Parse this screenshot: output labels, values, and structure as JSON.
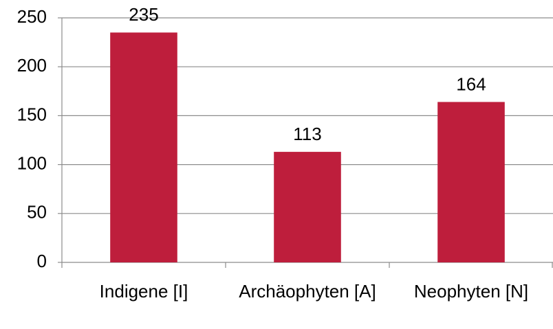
{
  "chart_data": {
    "type": "bar",
    "categories": [
      "Indigene [I]",
      "Archäophyten [A]",
      "Neophyten [N]"
    ],
    "values": [
      235,
      113,
      164
    ],
    "color": "#be1e3c",
    "ylim": [
      0,
      250
    ],
    "yticks": [
      0,
      50,
      100,
      150,
      200,
      250
    ],
    "grid": true
  }
}
